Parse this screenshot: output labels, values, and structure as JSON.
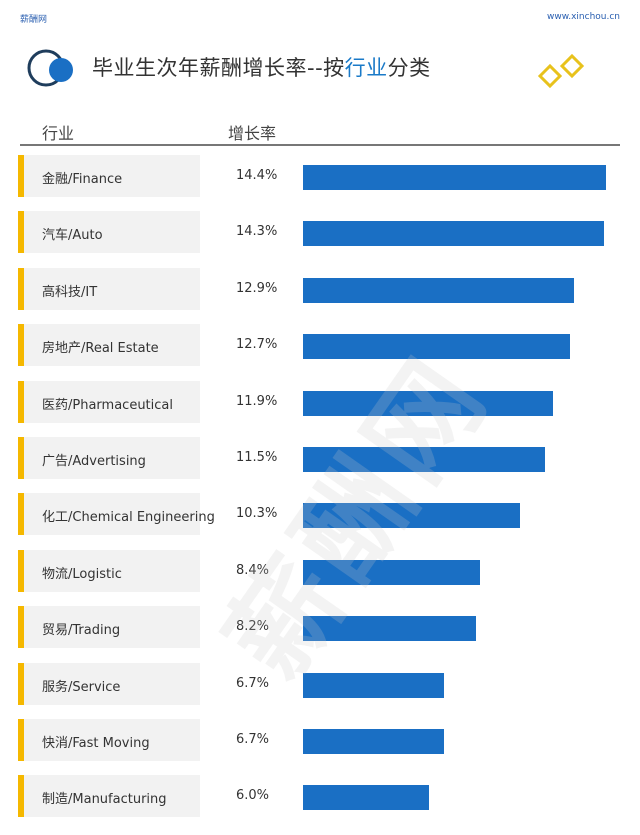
{
  "header": {
    "brand": "薪酬网",
    "url": "www.xinchou.cn",
    "watermark": "薪酬网"
  },
  "title": {
    "part1": "毕业生次年薪酬增长率--按",
    "highlight": "行业",
    "part2": "分类"
  },
  "chart_data": {
    "type": "bar",
    "orientation": "horizontal",
    "column_headers": [
      "行业",
      "增长率"
    ],
    "categories": [
      "金融/Finance",
      "汽车/Auto",
      "高科技/IT",
      "房地产/Real Estate",
      "医药/Pharmaceutical",
      "广告/Advertising",
      "化工/Chemical Engineering",
      "物流/Logistic",
      "贸易/Trading",
      "服务/Service",
      "快消/Fast Moving",
      "制造/Manufacturing"
    ],
    "values": [
      14.4,
      14.3,
      12.9,
      12.7,
      11.9,
      11.5,
      10.3,
      8.4,
      8.2,
      6.7,
      6.7,
      6.0
    ],
    "value_labels": [
      "14.4%",
      "14.3%",
      "12.9%",
      "12.7%",
      "11.9%",
      "11.5%",
      "10.3%",
      "8.4%",
      "8.2%",
      "6.7%",
      "6.7%",
      "6.0%"
    ],
    "unit": "%",
    "colors": {
      "bar": "#1a6fc4",
      "marker": "#f5b800",
      "accent": "#1a7ac8"
    }
  }
}
